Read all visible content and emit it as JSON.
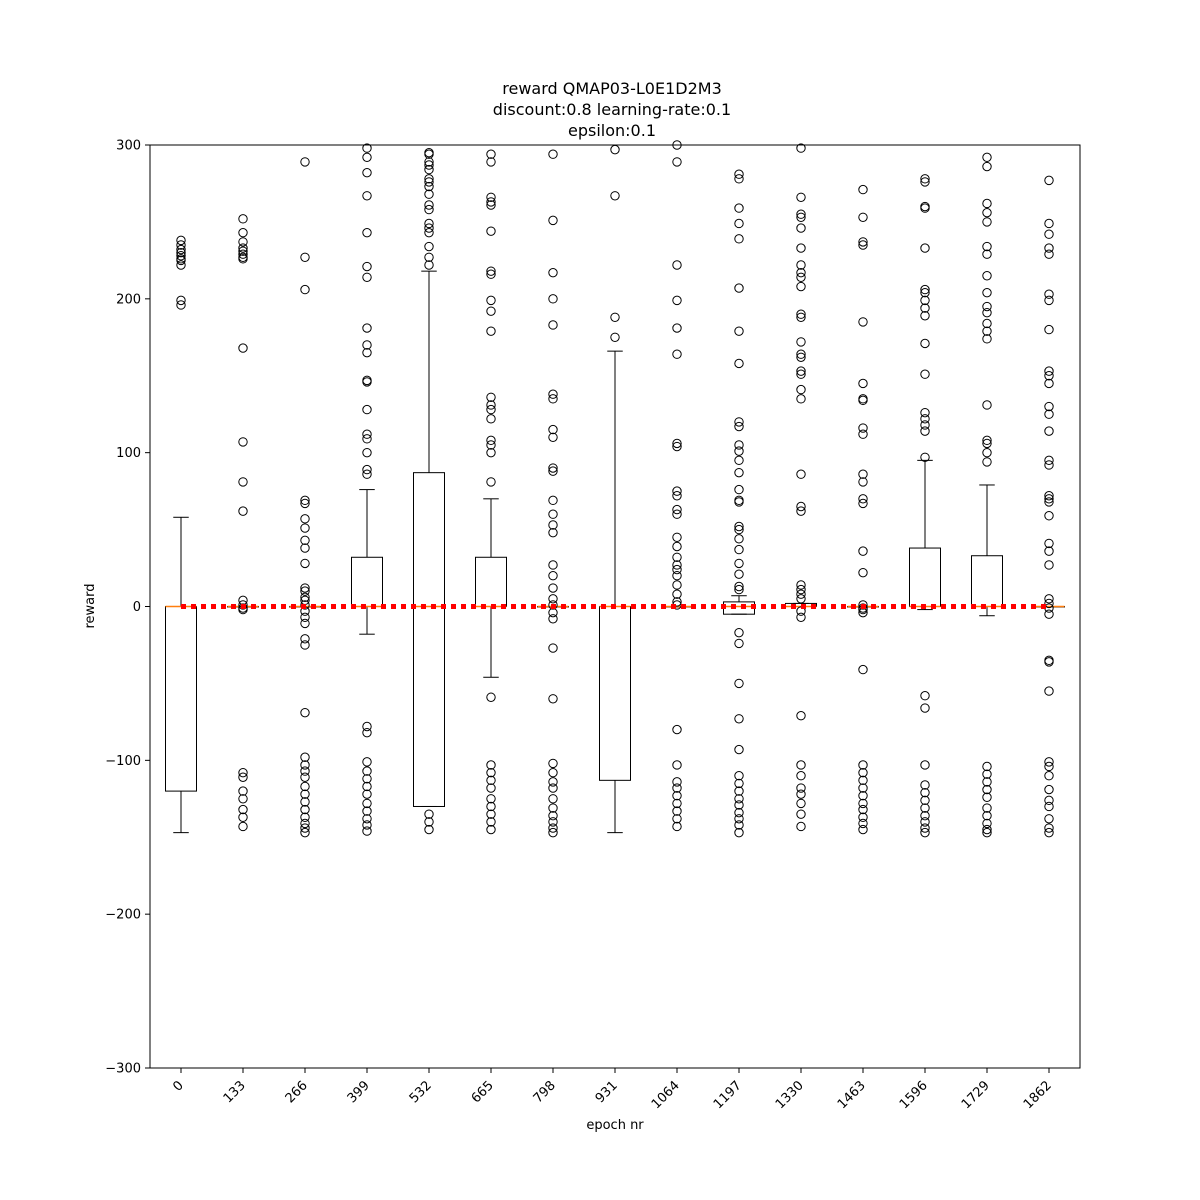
{
  "chart_data": {
    "type": "box",
    "title_lines": [
      "reward QMAP03-L0E1D2M3",
      "discount:0.8 learning-rate:0.1",
      "epsilon:0.1"
    ],
    "xlabel": "epoch nr",
    "ylabel": "reward",
    "ylim": [
      -300,
      300
    ],
    "yticks": [
      -300,
      -200,
      -100,
      0,
      100,
      200,
      300
    ],
    "categories": [
      "0",
      "133",
      "266",
      "399",
      "532",
      "665",
      "798",
      "931",
      "1064",
      "1197",
      "1330",
      "1463",
      "1596",
      "1729",
      "1862"
    ],
    "boxes": [
      {
        "q1": -120,
        "median": 0,
        "q3": 0,
        "whislo": -147,
        "whishi": 58,
        "fliers": [
          238,
          235,
          232,
          230,
          228,
          226,
          225,
          222,
          199,
          196
        ]
      },
      {
        "q1": 0,
        "median": 0,
        "q3": 0,
        "whislo": 0,
        "whishi": 0,
        "fliers": [
          252,
          243,
          237,
          233,
          231,
          229,
          227,
          226,
          168,
          107,
          81,
          62,
          4,
          1,
          -1,
          -2,
          -108,
          -111,
          -120,
          -125,
          -132,
          -137,
          -143
        ]
      },
      {
        "q1": 0,
        "median": 0,
        "q3": 0,
        "whislo": 0,
        "whishi": 0,
        "fliers": [
          289,
          227,
          206,
          69,
          67,
          57,
          51,
          43,
          38,
          28,
          12,
          10,
          6,
          4,
          1,
          -3,
          -7,
          -11,
          -21,
          -25,
          -69,
          -98,
          -103,
          -107,
          -111,
          -117,
          -122,
          -127,
          -132,
          -137,
          -141,
          -144,
          -147
        ]
      },
      {
        "q1": 0,
        "median": 0,
        "q3": 32,
        "whislo": -18,
        "whishi": 76,
        "fliers": [
          298,
          292,
          282,
          267,
          243,
          221,
          214,
          181,
          170,
          165,
          147,
          146,
          128,
          112,
          109,
          100,
          89,
          86,
          -78,
          -82,
          -101,
          -107,
          -112,
          -117,
          -122,
          -128,
          -133,
          -138,
          -142,
          -146
        ]
      },
      {
        "q1": -130,
        "median": 0,
        "q3": 87,
        "whislo": -130,
        "whishi": 218,
        "fliers": [
          295,
          294,
          289,
          287,
          284,
          278,
          276,
          273,
          268,
          261,
          258,
          249,
          246,
          243,
          234,
          227,
          222,
          -135,
          -140,
          -145
        ]
      },
      {
        "q1": 0,
        "median": 0,
        "q3": 32,
        "whislo": -46,
        "whishi": 70,
        "fliers": [
          294,
          289,
          266,
          263,
          261,
          244,
          218,
          216,
          199,
          192,
          179,
          136,
          131,
          128,
          122,
          108,
          105,
          100,
          81,
          -59,
          -103,
          -108,
          -113,
          -118,
          -125,
          -130,
          -135,
          -140,
          -145
        ]
      },
      {
        "q1": 0,
        "median": 0,
        "q3": 0,
        "whislo": 0,
        "whishi": 0,
        "fliers": [
          294,
          251,
          217,
          200,
          183,
          138,
          135,
          115,
          110,
          90,
          88,
          69,
          60,
          53,
          48,
          27,
          20,
          12,
          5,
          1,
          -4,
          -8,
          -27,
          -60,
          -102,
          -108,
          -114,
          -118,
          -125,
          -131,
          -136,
          -140,
          -144,
          -147
        ]
      },
      {
        "q1": -113,
        "median": 0,
        "q3": 0,
        "whislo": -147,
        "whishi": 166,
        "fliers": [
          297,
          267,
          188,
          175
        ]
      },
      {
        "q1": 0,
        "median": 0,
        "q3": 0,
        "whislo": 0,
        "whishi": 0,
        "fliers": [
          300,
          289,
          222,
          199,
          181,
          164,
          106,
          104,
          75,
          72,
          63,
          60,
          45,
          39,
          32,
          27,
          24,
          20,
          14,
          8,
          3,
          1,
          -80,
          -103,
          -114,
          -118,
          -123,
          -128,
          -133,
          -138,
          -143
        ]
      },
      {
        "q1": -5,
        "median": 0,
        "q3": 3,
        "whislo": -5,
        "whishi": 7,
        "fliers": [
          281,
          278,
          259,
          249,
          239,
          207,
          179,
          158,
          120,
          117,
          105,
          101,
          95,
          87,
          76,
          69,
          68,
          52,
          50,
          44,
          37,
          28,
          21,
          13,
          11,
          -17,
          -24,
          -50,
          -73,
          -93,
          -110,
          -115,
          -120,
          -125,
          -129,
          -134,
          -138,
          -142,
          -147
        ]
      },
      {
        "q1": 0,
        "median": 0,
        "q3": 2,
        "whislo": 0,
        "whishi": 2,
        "fliers": [
          298,
          266,
          255,
          253,
          246,
          233,
          222,
          217,
          214,
          208,
          190,
          188,
          172,
          164,
          162,
          153,
          151,
          141,
          135,
          86,
          65,
          62,
          14,
          11,
          8,
          5,
          -3,
          -7,
          -71,
          -103,
          -110,
          -118,
          -122,
          -128,
          -135,
          -143
        ]
      },
      {
        "q1": 0,
        "median": 0,
        "q3": 0,
        "whislo": 0,
        "whishi": 0,
        "fliers": [
          271,
          253,
          237,
          235,
          185,
          145,
          135,
          134,
          116,
          112,
          86,
          81,
          70,
          67,
          36,
          22,
          1,
          -1,
          -2,
          -4,
          -41,
          -103,
          -108,
          -113,
          -118,
          -123,
          -128,
          -132,
          -137,
          -141,
          -145
        ]
      },
      {
        "q1": 0,
        "median": 0,
        "q3": 38,
        "whislo": -2,
        "whishi": 95,
        "fliers": [
          278,
          276,
          260,
          259,
          233,
          206,
          204,
          199,
          194,
          189,
          171,
          151,
          126,
          122,
          118,
          114,
          97,
          -58,
          -66,
          -103,
          -116,
          -121,
          -126,
          -131,
          -136,
          -140,
          -144,
          -147
        ]
      },
      {
        "q1": 0,
        "median": 0,
        "q3": 33,
        "whislo": -6,
        "whishi": 79,
        "fliers": [
          292,
          286,
          262,
          256,
          250,
          234,
          229,
          215,
          204,
          195,
          191,
          184,
          179,
          174,
          131,
          108,
          106,
          100,
          94,
          -104,
          -109,
          -114,
          -119,
          -124,
          -131,
          -136,
          -141,
          -145,
          -147
        ]
      },
      {
        "q1": 0,
        "median": 0,
        "q3": 0,
        "whislo": 0,
        "whishi": 0,
        "fliers": [
          277,
          249,
          242,
          233,
          229,
          203,
          199,
          180,
          153,
          150,
          145,
          130,
          125,
          114,
          95,
          92,
          72,
          70,
          68,
          59,
          41,
          36,
          27,
          5,
          2,
          -1,
          -5,
          -35,
          -36,
          -55,
          -101,
          -104,
          -110,
          -119,
          -126,
          -130,
          -138,
          -144,
          -147
        ]
      }
    ],
    "reference_line": {
      "y": 0,
      "style": "dotted",
      "color": "#ff0000"
    },
    "box_color": "#000000",
    "median_color": "#ff7f0e",
    "grid": false
  }
}
